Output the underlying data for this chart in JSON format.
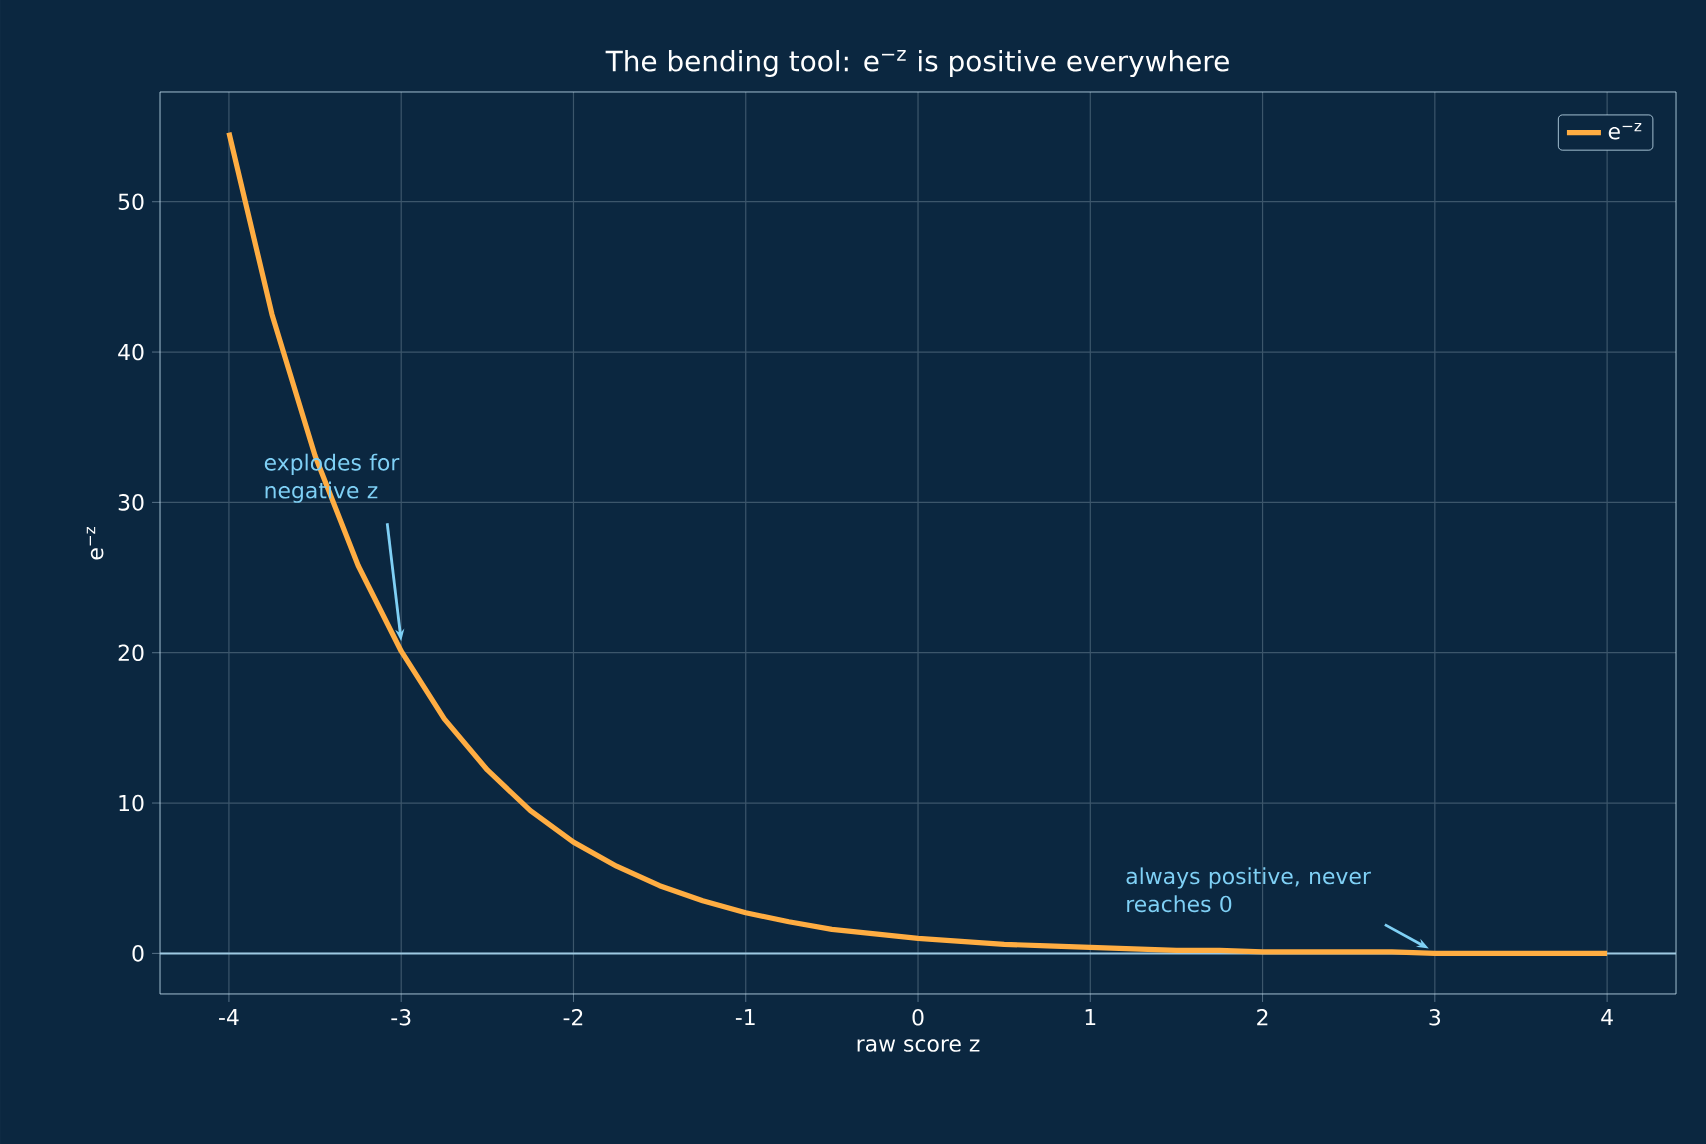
{
  "chart_data": {
    "type": "line",
    "title": "The bending tool: e$^{−z}$ is positive everywhere",
    "xlabel": "raw score z",
    "ylabel": "e$^{−z}$",
    "x": [
      -4,
      -3.75,
      -3.5,
      -3.25,
      -3,
      -2.75,
      -2.5,
      -2.25,
      -2,
      -1.75,
      -1.5,
      -1.25,
      -1,
      -0.75,
      -0.5,
      -0.25,
      0,
      0.25,
      0.5,
      0.75,
      1,
      1.25,
      1.5,
      1.75,
      2,
      2.25,
      2.5,
      2.75,
      3,
      3.25,
      3.5,
      3.75,
      4
    ],
    "series": [
      {
        "name": "e$^{−z}$",
        "color": "#ffad42",
        "values": [
          54.6,
          42.5,
          33.1,
          25.8,
          20.1,
          15.6,
          12.2,
          9.5,
          7.4,
          5.8,
          4.5,
          3.5,
          2.7,
          2.1,
          1.6,
          1.3,
          1.0,
          0.8,
          0.6,
          0.5,
          0.4,
          0.3,
          0.2,
          0.2,
          0.1,
          0.1,
          0.1,
          0.1,
          0.0,
          0.0,
          0.0,
          0.0,
          0.0
        ]
      }
    ],
    "xlim": [
      -4.4,
      4.4
    ],
    "ylim": [
      -2.7,
      57.3
    ],
    "xticks": [
      -4,
      -3,
      -2,
      -1,
      0,
      1,
      2,
      3,
      4
    ],
    "yticks": [
      0,
      10,
      20,
      30,
      40,
      50
    ],
    "grid": true,
    "legend": "top right",
    "ref_lines": [
      {
        "axis": "y",
        "value": 0,
        "color": "#9ec9e2"
      }
    ],
    "annotations": [
      {
        "text": "explodes for negative z",
        "x": -3,
        "y": 20.1
      },
      {
        "text": "always positive, never reaches 0",
        "x": 3,
        "y": 0.05
      }
    ]
  }
}
